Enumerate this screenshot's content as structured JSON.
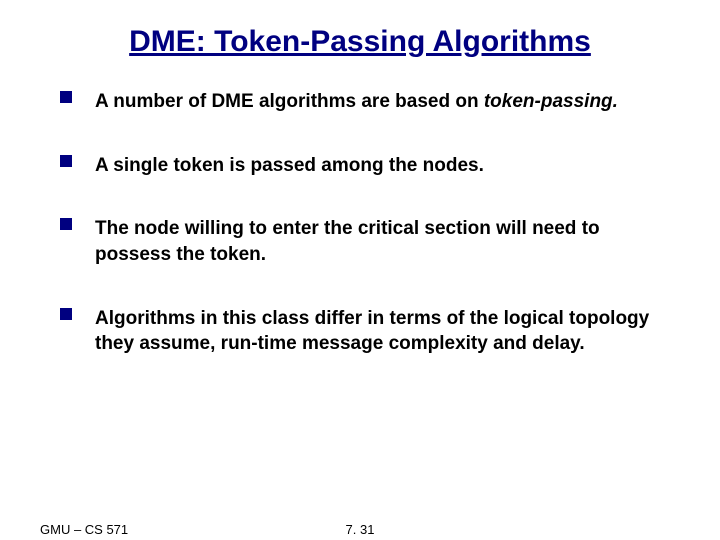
{
  "title": "DME: Token-Passing Algorithms",
  "title_color": "#000080",
  "title_fontsize": 30,
  "bullet_color": "#000080",
  "body_fontsize": 19,
  "bullets": [
    {
      "text_normal": "A number of  DME algorithms are based on ",
      "text_italic": "token-passing."
    },
    {
      "text_normal": "A single token is passed among the nodes.",
      "text_italic": ""
    },
    {
      "text_normal": "The node willing to enter the critical section will need to possess the token.",
      "text_italic": ""
    },
    {
      "text_normal": "Algorithms in this class differ in terms of the logical topology they assume, run-time message complexity and delay.",
      "text_italic": ""
    }
  ],
  "footer": {
    "left": "GMU – CS 571",
    "center": "7. 31"
  },
  "background_color": "#ffffff"
}
